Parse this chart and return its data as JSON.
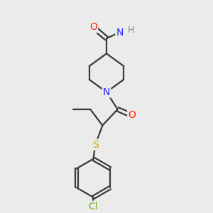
{
  "background_color": "#ebebeb",
  "bond_color": "#3a3a3a",
  "atom_colors": {
    "O": "#ff2200",
    "N": "#2222ff",
    "S": "#ccaa00",
    "Cl": "#7ab32e",
    "H": "#888888",
    "C": "#3a3a3a"
  },
  "figsize": [
    3.0,
    3.0
  ],
  "dpi": 100
}
